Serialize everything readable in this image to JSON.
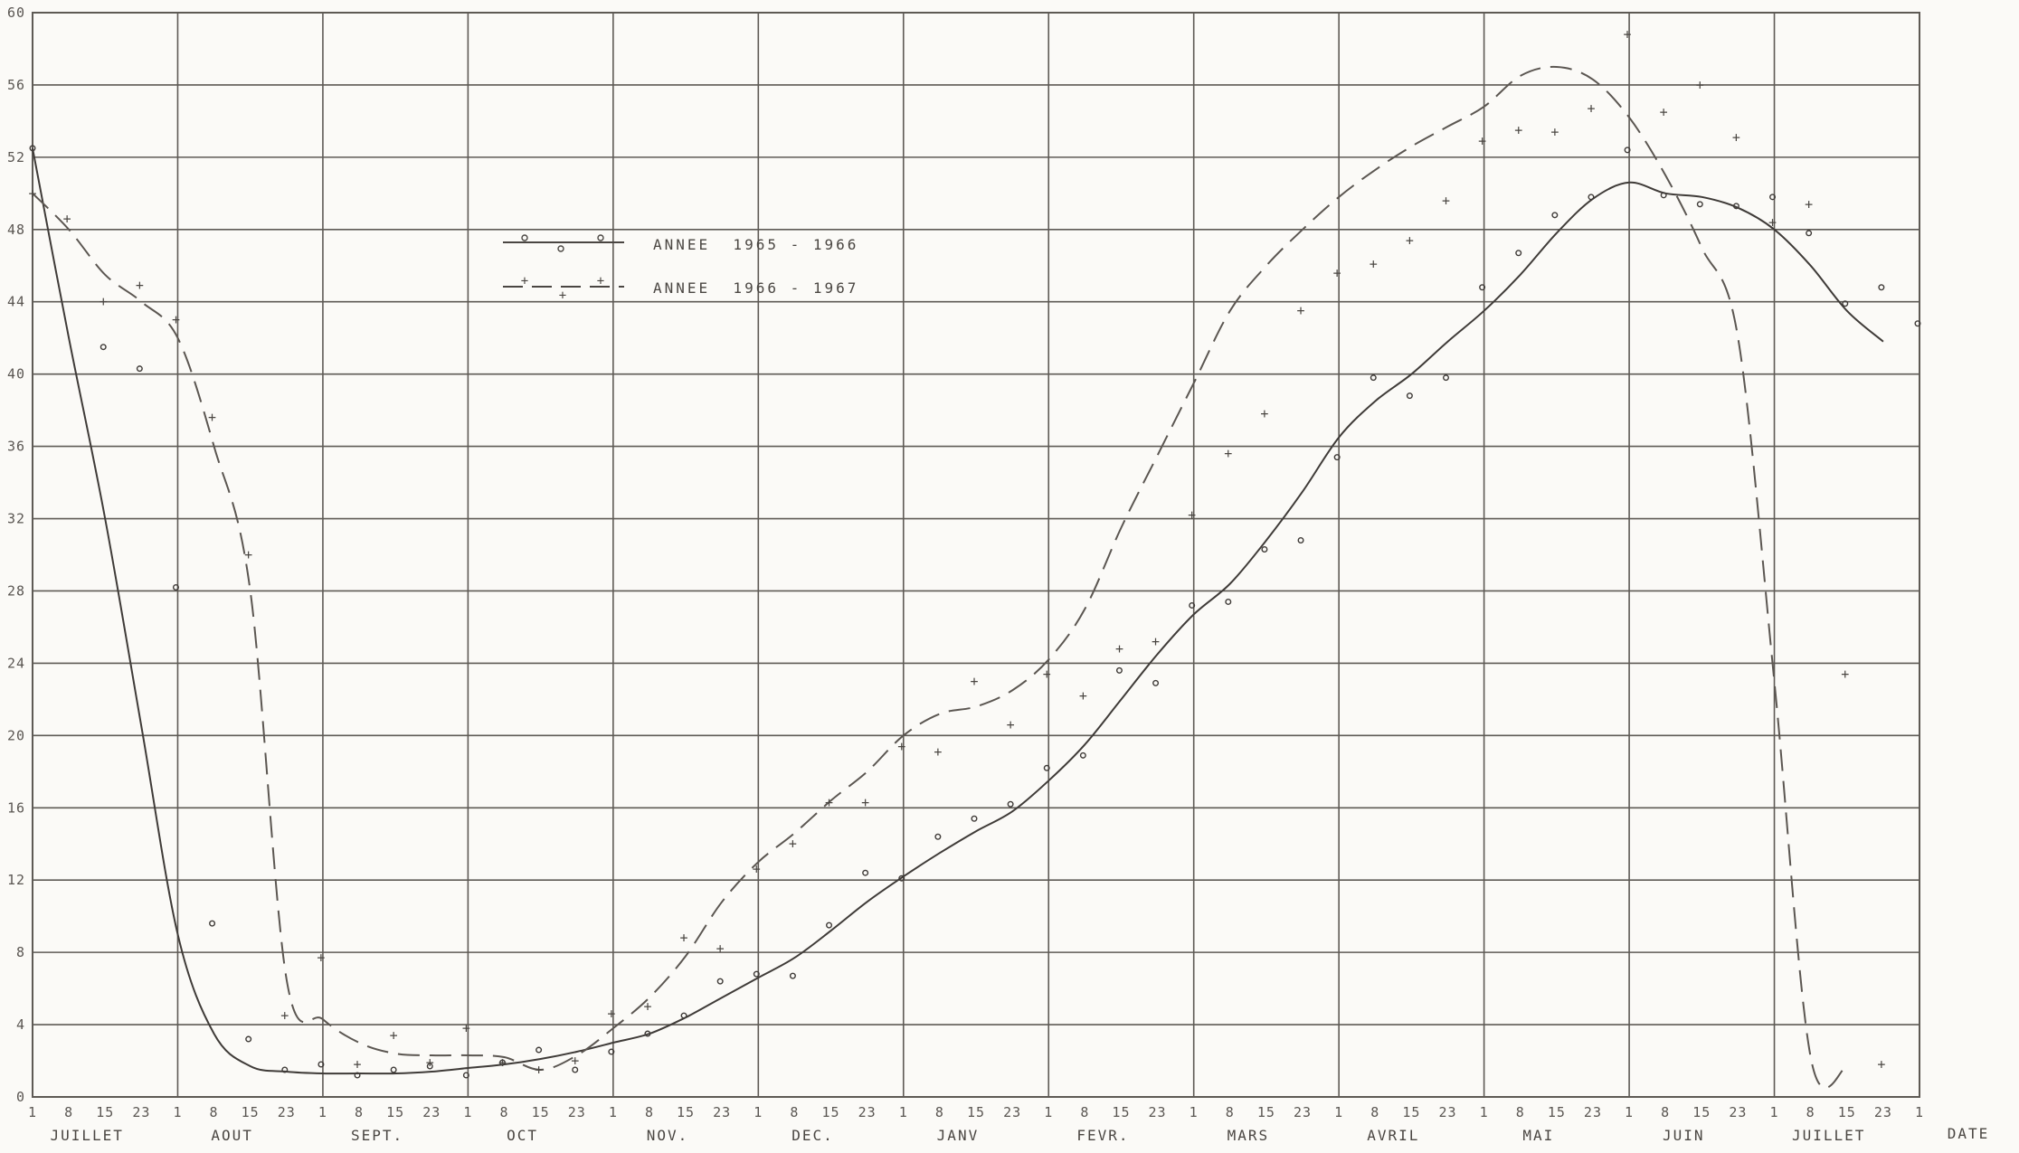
{
  "chart_data": {
    "type": "line",
    "xlabel": "DATE",
    "ylabel": "",
    "ylim": [
      0,
      60
    ],
    "y_ticks": [
      0,
      4,
      8,
      12,
      16,
      20,
      24,
      28,
      32,
      36,
      40,
      44,
      48,
      52,
      56,
      60
    ],
    "day_ticks": [
      "1",
      "8",
      "15",
      "23"
    ],
    "months": [
      "JUILLET",
      "AOUT",
      "SEPT.",
      "OCT",
      "NOV.",
      "DEC.",
      "JANV",
      "FEVR.",
      "MARS",
      "AVRIL",
      "MAI",
      "JUIN",
      "JUILLET"
    ],
    "final_tick": "1",
    "grid": true,
    "legend_position": "upper-left",
    "series": [
      {
        "name": "ANNEE  1965 - 1966",
        "style": "solid",
        "curve_y": [
          52.5,
          42,
          32,
          20.5,
          9,
          3.5,
          1.7,
          1.4,
          1.3,
          1.3,
          1.3,
          1.4,
          1.6,
          1.8,
          2.1,
          2.5,
          3.0,
          3.5,
          4.4,
          5.5,
          6.6,
          7.7,
          9.2,
          10.8,
          12.2,
          13.5,
          14.7,
          15.8,
          17.5,
          19.5,
          22.0,
          24.5,
          26.7,
          28.4,
          30.8,
          33.5,
          36.5,
          38.5,
          40.0,
          41.8,
          43.5,
          45.5,
          47.8,
          49.7,
          50.6,
          50.0,
          49.8,
          49.2,
          48.0,
          46.0,
          43.5,
          41.8
        ],
        "points": [
          [
            0,
            52.5
          ],
          [
            1.95,
            41.5
          ],
          [
            2.95,
            40.3
          ],
          [
            3.95,
            28.2
          ],
          [
            4.95,
            9.6
          ],
          [
            5.95,
            3.2
          ],
          [
            6.95,
            1.5
          ],
          [
            7.95,
            1.8
          ],
          [
            8.95,
            1.2
          ],
          [
            9.95,
            1.5
          ],
          [
            10.95,
            1.7
          ],
          [
            11.95,
            1.2
          ],
          [
            12.95,
            1.9
          ],
          [
            13.95,
            2.6
          ],
          [
            14.95,
            1.5
          ],
          [
            15.95,
            2.5
          ],
          [
            16.95,
            3.5
          ],
          [
            17.95,
            4.5
          ],
          [
            18.95,
            6.4
          ],
          [
            19.95,
            6.8
          ],
          [
            20.95,
            6.7
          ],
          [
            21.95,
            9.5
          ],
          [
            22.95,
            12.4
          ],
          [
            23.95,
            12.1
          ],
          [
            24.95,
            14.4
          ],
          [
            25.95,
            15.4
          ],
          [
            26.95,
            16.2
          ],
          [
            27.95,
            18.2
          ],
          [
            28.95,
            18.9
          ],
          [
            29.95,
            23.6
          ],
          [
            30.95,
            22.9
          ],
          [
            31.95,
            27.2
          ],
          [
            32.95,
            27.4
          ],
          [
            33.95,
            30.3
          ],
          [
            34.95,
            30.8
          ],
          [
            35.95,
            35.4
          ],
          [
            36.95,
            39.8
          ],
          [
            37.95,
            38.8
          ],
          [
            38.95,
            39.8
          ],
          [
            39.95,
            44.8
          ],
          [
            40.95,
            46.7
          ],
          [
            41.95,
            48.8
          ],
          [
            42.95,
            49.8
          ],
          [
            43.95,
            52.4
          ],
          [
            44.95,
            49.9
          ],
          [
            45.95,
            49.4
          ],
          [
            46.95,
            49.3
          ],
          [
            47.95,
            49.8
          ],
          [
            48.95,
            47.8
          ],
          [
            49.95,
            43.9
          ],
          [
            50.95,
            44.8
          ],
          [
            51.95,
            42.8
          ]
        ]
      },
      {
        "name": "ANNEE  1966 - 1967",
        "style": "dashed",
        "curve_y": [
          50,
          48,
          45.5,
          44,
          42,
          36,
          28,
          6.5,
          4.3,
          3.0,
          2.4,
          2.3,
          2.3,
          2.2,
          1.5,
          2.3,
          3.8,
          5.5,
          7.8,
          10.8,
          13.0,
          14.6,
          16.4,
          18.0,
          20.0,
          21.2,
          21.6,
          22.5,
          24.2,
          27.0,
          31.5,
          35.5,
          39.5,
          43.5,
          46.0,
          48.0,
          49.8,
          51.3,
          52.6,
          53.7,
          54.8,
          56.5,
          57.0,
          56.3,
          54.2,
          51.0,
          47.0,
          42.0,
          23.0,
          2.2,
          1.7
        ],
        "points": [
          [
            0,
            50.0
          ],
          [
            0.95,
            48.6
          ],
          [
            1.95,
            44.0
          ],
          [
            2.95,
            44.9
          ],
          [
            3.95,
            43.0
          ],
          [
            4.95,
            37.6
          ],
          [
            5.95,
            30.0
          ],
          [
            6.95,
            4.5
          ],
          [
            7.95,
            7.7
          ],
          [
            8.95,
            1.8
          ],
          [
            9.95,
            3.4
          ],
          [
            10.95,
            1.9
          ],
          [
            11.95,
            3.8
          ],
          [
            12.95,
            1.9
          ],
          [
            13.95,
            1.5
          ],
          [
            14.95,
            2.0
          ],
          [
            15.95,
            4.6
          ],
          [
            16.95,
            5.0
          ],
          [
            17.95,
            8.8
          ],
          [
            18.95,
            8.2
          ],
          [
            19.95,
            12.6
          ],
          [
            20.95,
            14.0
          ],
          [
            21.95,
            16.3
          ],
          [
            22.95,
            16.3
          ],
          [
            23.95,
            19.4
          ],
          [
            24.95,
            19.1
          ],
          [
            25.95,
            23.0
          ],
          [
            26.95,
            20.6
          ],
          [
            27.95,
            23.4
          ],
          [
            28.95,
            22.2
          ],
          [
            29.95,
            24.8
          ],
          [
            30.95,
            25.2
          ],
          [
            31.95,
            32.2
          ],
          [
            32.95,
            35.6
          ],
          [
            33.95,
            37.8
          ],
          [
            34.95,
            43.5
          ],
          [
            35.95,
            45.6
          ],
          [
            36.95,
            46.1
          ],
          [
            37.95,
            47.4
          ],
          [
            38.95,
            49.6
          ],
          [
            39.95,
            52.9
          ],
          [
            40.95,
            53.5
          ],
          [
            41.95,
            53.4
          ],
          [
            42.95,
            54.7
          ],
          [
            43.95,
            58.8
          ],
          [
            44.95,
            54.5
          ],
          [
            45.95,
            56.0
          ],
          [
            46.95,
            53.1
          ],
          [
            47.95,
            48.4
          ],
          [
            48.95,
            49.4
          ],
          [
            49.95,
            23.4
          ],
          [
            50.95,
            1.8
          ]
        ]
      }
    ]
  }
}
